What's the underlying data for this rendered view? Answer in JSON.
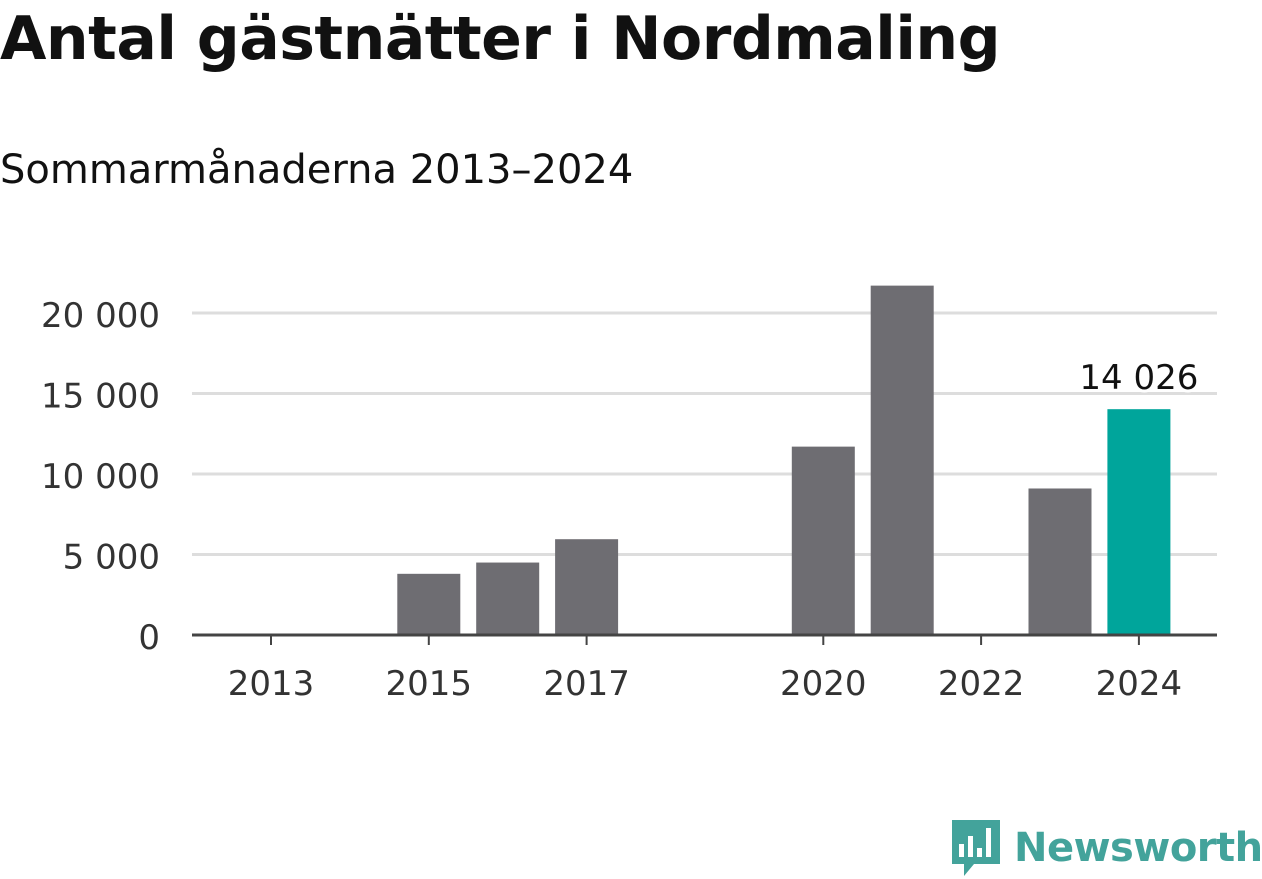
{
  "header": {
    "title": "Antal gästnätter i Nordmaling",
    "subtitle": "Sommarmånaderna 2013–2024"
  },
  "brand": {
    "name": "Newsworthy",
    "icon": "newsworthy-logo-icon",
    "color": "#43a39b"
  },
  "colors": {
    "bar": "#6e6d72",
    "highlight": "#00a59b",
    "grid": "#dddddd",
    "axis": "#444444"
  },
  "chart_data": {
    "type": "bar",
    "title": "Antal gästnätter i Nordmaling",
    "subtitle": "Sommarmånaderna 2013–2024",
    "xlabel": "",
    "ylabel": "",
    "categories": [
      "2013",
      "2014",
      "2015",
      "2016",
      "2017",
      "2018",
      "2019",
      "2020",
      "2021",
      "2022",
      "2023",
      "2024"
    ],
    "values": [
      null,
      null,
      3800,
      4500,
      5950,
      null,
      null,
      11700,
      21700,
      null,
      9100,
      14026
    ],
    "highlight_index": 11,
    "data_labels": [
      {
        "index": 11,
        "text": "14 026"
      }
    ],
    "x_tick_labels": [
      "2013",
      "2015",
      "2017",
      "2020",
      "2022",
      "2024"
    ],
    "y_ticks": [
      0,
      5000,
      10000,
      15000,
      20000
    ],
    "y_tick_labels": [
      "0",
      "5 000",
      "10 000",
      "15 000",
      "20 000"
    ],
    "ylim": [
      0,
      22000
    ],
    "grid": true,
    "legend": "none"
  }
}
